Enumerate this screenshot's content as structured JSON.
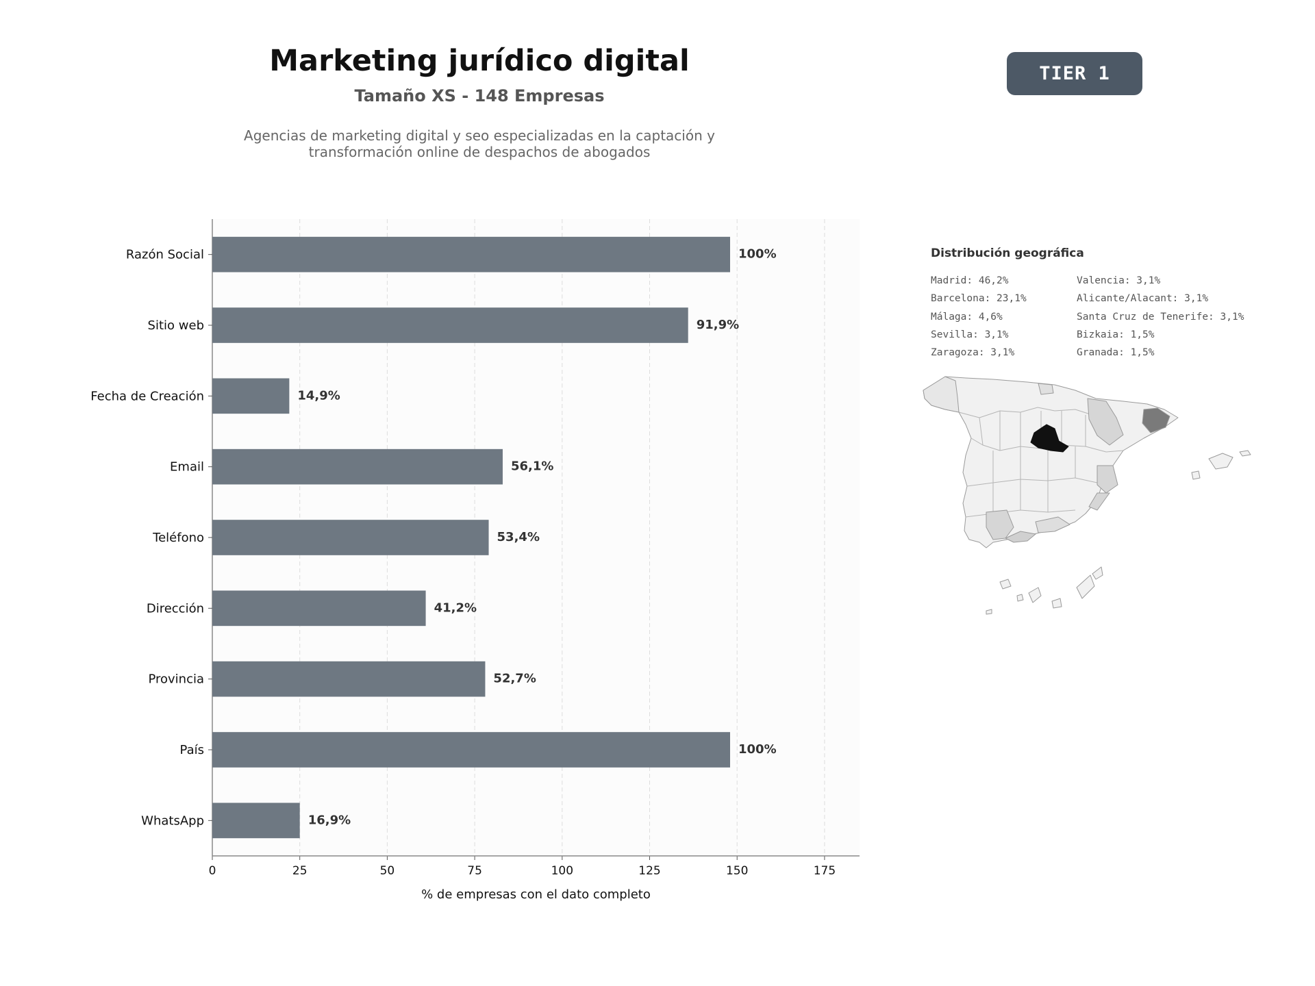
{
  "header": {
    "title": "Marketing jurídico digital",
    "subtitle": "Tamaño XS - 148 Empresas",
    "description_line1": "Agencias de marketing digital y seo especializadas en la captación y",
    "description_line2": "transformación online de despachos de abogados",
    "tier_badge": "TIER 1"
  },
  "colors": {
    "bar": "#6e7882",
    "badge": "#4d5966",
    "plot_bg": "#fcfcfc",
    "grid": "#dddddd"
  },
  "chart_data": {
    "type": "bar",
    "orientation": "horizontal",
    "categories": [
      "Razón Social",
      "Sitio web",
      "Fecha de Creación",
      "Email",
      "Teléfono",
      "Dirección",
      "Provincia",
      "País",
      "WhatsApp"
    ],
    "values": [
      148,
      136,
      22,
      83,
      79,
      61,
      78,
      148,
      25
    ],
    "value_labels": [
      "100%",
      "91,9%",
      "14,9%",
      "56,1%",
      "53,4%",
      "41,2%",
      "52,7%",
      "100%",
      "16,9%"
    ],
    "xlabel": "% de empresas con el dato completo",
    "ylabel": "",
    "xlim": [
      0,
      185
    ],
    "xticks": [
      "0",
      "25",
      "50",
      "75",
      "100",
      "125",
      "150",
      "175"
    ],
    "grid": "x-dashed"
  },
  "geo": {
    "title": "Distribución geográfica",
    "col1": [
      "Madrid: 46,2%",
      "Barcelona: 23,1%",
      "Málaga: 4,6%",
      "Sevilla: 3,1%",
      "Zaragoza: 3,1%"
    ],
    "col2": [
      "Valencia: 3,1%",
      "Alicante/Alacant: 3,1%",
      "Santa Cruz de Tenerife: 3,1%",
      "Bizkaia: 1,5%",
      "Granada: 1,5%"
    ],
    "map_shading": {
      "Madrid": "#111111",
      "Barcelona": "#7a7a7a",
      "Zaragoza": "#d6d6d6",
      "Valencia": "#d6d6d6",
      "Alicante": "#d6d6d6",
      "Málaga": "#d0d0d0",
      "Sevilla": "#d6d6d6",
      "Granada": "#dedede",
      "Bizkaia": "#e0e0e0",
      "other": "#f1f1f1"
    }
  }
}
